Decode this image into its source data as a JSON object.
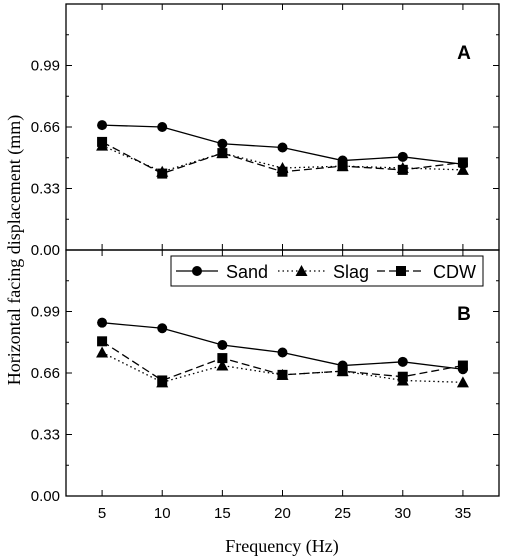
{
  "chart_data": [
    {
      "type": "line",
      "panel_label": "A",
      "x": [
        5,
        10,
        15,
        20,
        25,
        30,
        35
      ],
      "xlim": [
        2,
        38
      ],
      "ylim": [
        0,
        1.32
      ],
      "xticks": [
        "5",
        "10",
        "15",
        "20",
        "25",
        "30",
        "35"
      ],
      "yticks": [
        "0.00",
        "0.33",
        "0.66",
        "0.99"
      ],
      "series": [
        {
          "name": "Sand",
          "values": [
            0.67,
            0.66,
            0.57,
            0.55,
            0.48,
            0.5,
            0.46
          ]
        },
        {
          "name": "Slag",
          "values": [
            0.56,
            0.42,
            0.52,
            0.44,
            0.45,
            0.44,
            0.43
          ]
        },
        {
          "name": "CDW",
          "values": [
            0.58,
            0.41,
            0.52,
            0.42,
            0.45,
            0.43,
            0.47
          ]
        }
      ]
    },
    {
      "type": "line",
      "panel_label": "B",
      "x": [
        5,
        10,
        15,
        20,
        25,
        30,
        35
      ],
      "xlim": [
        2,
        38
      ],
      "ylim": [
        0,
        1.32
      ],
      "xticks": [
        "5",
        "10",
        "15",
        "20",
        "25",
        "30",
        "35"
      ],
      "yticks": [
        "0.00",
        "0.33",
        "0.66",
        "0.99"
      ],
      "series": [
        {
          "name": "Sand",
          "values": [
            0.93,
            0.9,
            0.81,
            0.77,
            0.7,
            0.72,
            0.68
          ]
        },
        {
          "name": "Slag",
          "values": [
            0.77,
            0.61,
            0.7,
            0.65,
            0.67,
            0.62,
            0.61
          ]
        },
        {
          "name": "CDW",
          "values": [
            0.83,
            0.62,
            0.74,
            0.65,
            0.67,
            0.64,
            0.7
          ]
        }
      ]
    }
  ],
  "xlabel": "Frequency (Hz)",
  "ylabel": "Horizontal facing displacement (mm)",
  "legend": {
    "placement": "top-right of lower panel",
    "items": [
      {
        "label": "Sand",
        "marker": "circle",
        "dash": "solid"
      },
      {
        "label": "Slag",
        "marker": "triangle",
        "dash": "dot"
      },
      {
        "label": "CDW",
        "marker": "square",
        "dash": "dash"
      }
    ]
  },
  "colors": {
    "line": "#000000",
    "background": "#ffffff"
  }
}
